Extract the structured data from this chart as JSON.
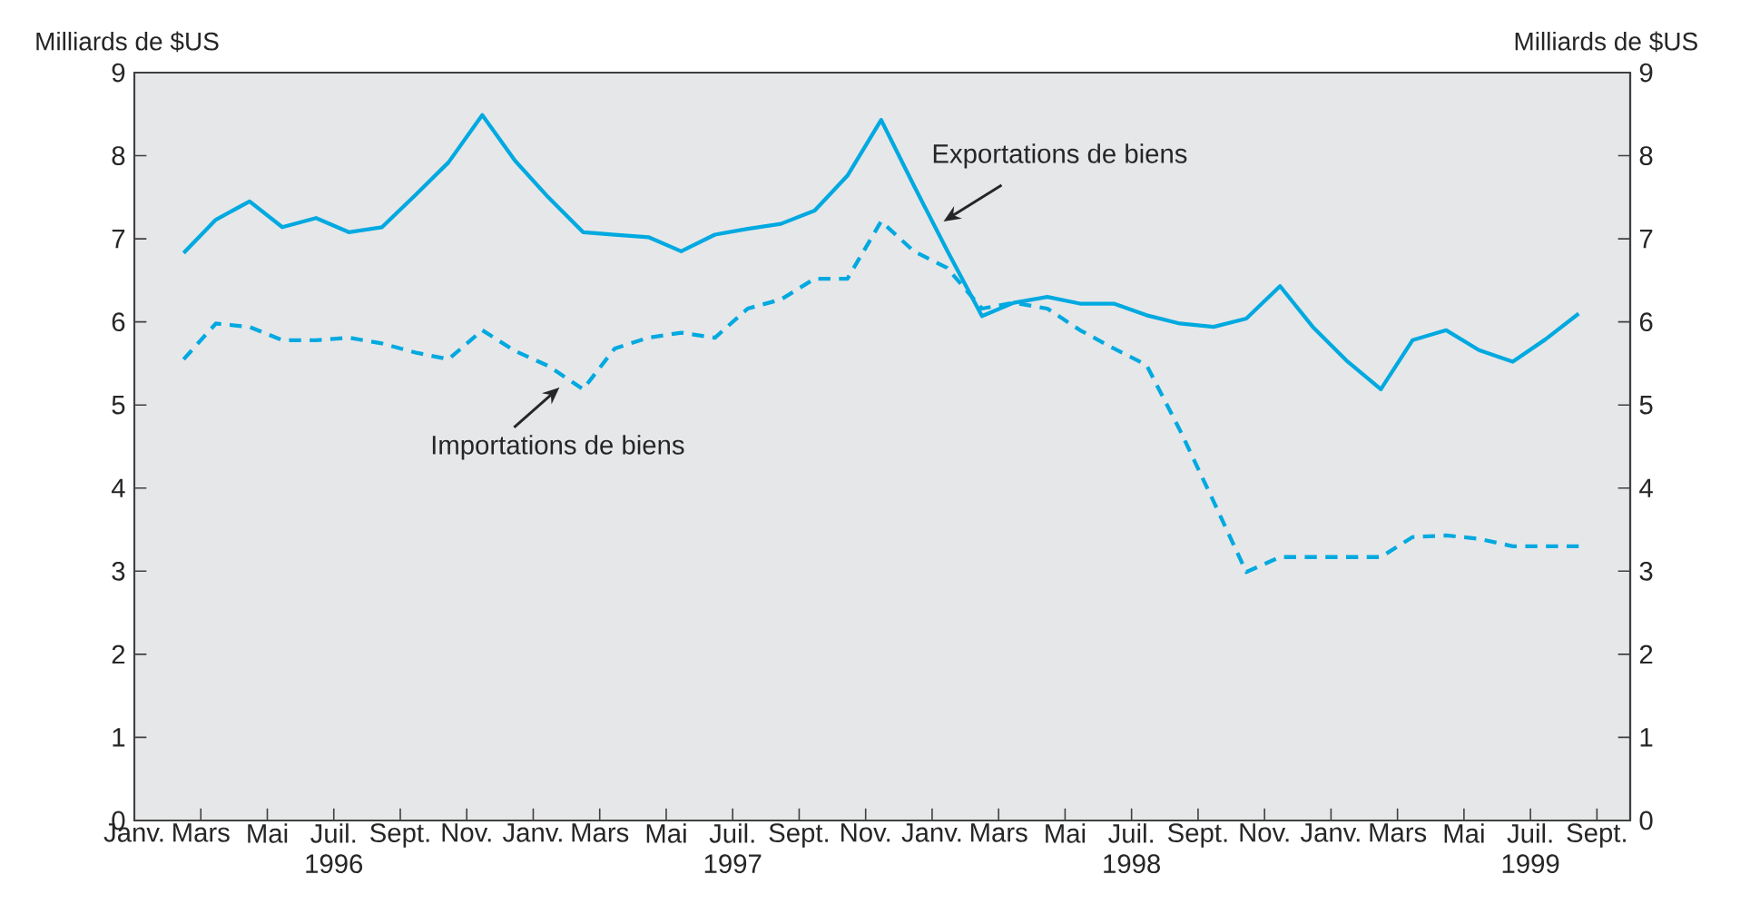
{
  "chart_data": {
    "type": "line",
    "ylabel": "Milliards de $US",
    "y2label": "Milliards de $US",
    "xlim": [
      "1996-01",
      "1999-10"
    ],
    "xticks": [
      {
        "value": "1996-01",
        "label": "Janv."
      },
      {
        "value": "1996-03",
        "label": "Mars"
      },
      {
        "value": "1996-05",
        "label": "Mai"
      },
      {
        "value": "1996-07",
        "label": "Juil. 1996"
      },
      {
        "value": "1996-09",
        "label": "Sept."
      },
      {
        "value": "1996-11",
        "label": "Nov."
      },
      {
        "value": "1997-01",
        "label": "Janv."
      },
      {
        "value": "1997-03",
        "label": "Mars"
      },
      {
        "value": "1997-05",
        "label": "Mai"
      },
      {
        "value": "1997-07",
        "label": "Juil. 1997"
      },
      {
        "value": "1997-09",
        "label": "Sept."
      },
      {
        "value": "1997-11",
        "label": "Nov."
      },
      {
        "value": "1998-01",
        "label": "Janv."
      },
      {
        "value": "1998-03",
        "label": "Mars"
      },
      {
        "value": "1998-05",
        "label": "Mai"
      },
      {
        "value": "1998-07",
        "label": "Juil. 1998"
      },
      {
        "value": "1998-09",
        "label": "Sept."
      },
      {
        "value": "1998-11",
        "label": "Nov."
      },
      {
        "value": "1999-01",
        "label": "Janv."
      },
      {
        "value": "1999-03",
        "label": "Mars"
      },
      {
        "value": "1999-05",
        "label": "Mai"
      },
      {
        "value": "1999-07",
        "label": "Juil. 1999"
      },
      {
        "value": "1999-09",
        "label": "Sept."
      }
    ],
    "ylim": [
      0,
      9
    ],
    "yticks": [
      0,
      1,
      2,
      3,
      4,
      5,
      6,
      7,
      8,
      9
    ],
    "y2lim": [
      0,
      9
    ],
    "y2ticks": [
      0,
      1,
      2,
      3,
      4,
      5,
      6,
      7,
      8,
      9
    ],
    "x": [
      "1996-02-15",
      "1996-03-15",
      "1996-04-15",
      "1996-05-15",
      "1996-06-15",
      "1996-07-15",
      "1996-08-15",
      "1996-09-15",
      "1996-10-15",
      "1996-11-15",
      "1996-12-15",
      "1997-01-15",
      "1997-02-15",
      "1997-03-15",
      "1997-04-15",
      "1997-05-15",
      "1997-06-15",
      "1997-07-15",
      "1997-08-15",
      "1997-09-15",
      "1997-10-15",
      "1997-11-15",
      "1997-12-15",
      "1998-01-15",
      "1998-02-15",
      "1998-03-15",
      "1998-04-15",
      "1998-05-15",
      "1998-06-15",
      "1998-07-15",
      "1998-08-15",
      "1998-09-15",
      "1998-10-15",
      "1998-11-15",
      "1998-12-15",
      "1999-01-15",
      "1999-02-15",
      "1999-03-15",
      "1999-04-15",
      "1999-05-15",
      "1999-06-15",
      "1999-07-15",
      "1999-08-15"
    ],
    "series": [
      {
        "name": "Exportations de biens",
        "color": "#00a9e0",
        "line_style": "solid",
        "values": [
          6.83,
          7.23,
          7.45,
          7.14,
          7.25,
          7.08,
          7.14,
          7.53,
          7.92,
          8.49,
          7.94,
          7.5,
          7.08,
          7.05,
          7.02,
          6.85,
          7.05,
          7.12,
          7.18,
          7.34,
          7.76,
          8.43,
          7.64,
          6.86,
          6.07,
          6.23,
          6.3,
          6.22,
          6.22,
          6.08,
          5.98,
          5.94,
          6.04,
          6.43,
          5.94,
          5.54,
          5.19,
          5.78,
          5.9,
          5.66,
          5.52,
          5.79,
          6.1
        ]
      },
      {
        "name": "Importations de biens",
        "color": "#00a9e0",
        "line_style": "dashed",
        "values": [
          5.55,
          5.98,
          5.94,
          5.78,
          5.78,
          5.81,
          5.74,
          5.63,
          5.55,
          5.9,
          5.65,
          5.47,
          5.19,
          5.68,
          5.81,
          5.87,
          5.81,
          6.16,
          6.27,
          6.52,
          6.52,
          7.21,
          6.85,
          6.65,
          6.16,
          6.23,
          6.16,
          5.9,
          5.68,
          5.48,
          4.7,
          3.84,
          2.99,
          3.17,
          3.17,
          3.17,
          3.17,
          3.41,
          3.43,
          3.39,
          3.3,
          3.3,
          3.3
        ]
      }
    ]
  }
}
